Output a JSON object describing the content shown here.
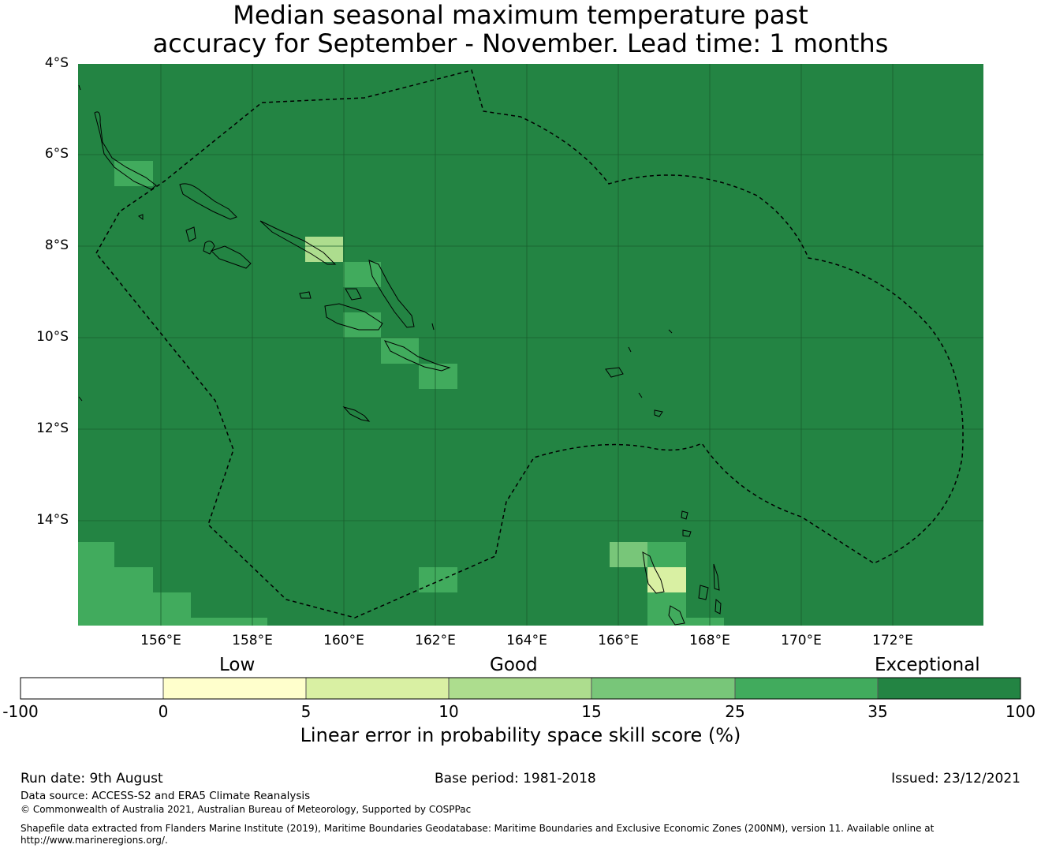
{
  "title": {
    "line1": "Median seasonal maximum temperature past",
    "line2": "accuracy for September - November. Lead time: 1 months"
  },
  "map": {
    "lat_labels": [
      "4°S",
      "6°S",
      "8°S",
      "10°S",
      "12°S",
      "14°S"
    ],
    "lon_labels": [
      "156°E",
      "158°E",
      "160°E",
      "162°E",
      "164°E",
      "166°E",
      "168°E",
      "170°E",
      "172°E"
    ],
    "background_color": "#238443"
  },
  "colorbar": {
    "headings": {
      "low": "Low",
      "good": "Good",
      "exceptional": "Exceptional"
    },
    "bins": [
      {
        "from": -100,
        "to": 0,
        "color": "#ffffff"
      },
      {
        "from": 0,
        "to": 5,
        "color": "#ffffcc"
      },
      {
        "from": 5,
        "to": 10,
        "color": "#d9f0a3"
      },
      {
        "from": 10,
        "to": 15,
        "color": "#addd8e"
      },
      {
        "from": 15,
        "to": 25,
        "color": "#78c679"
      },
      {
        "from": 25,
        "to": 35,
        "color": "#41ab5d"
      },
      {
        "from": 35,
        "to": 100,
        "color": "#238443"
      }
    ],
    "ticks": [
      "-100",
      "0",
      "5",
      "10",
      "15",
      "25",
      "35",
      "100"
    ],
    "label": "Linear error in probability space skill score (%)"
  },
  "footer": {
    "run_date": "Run date: 9th August",
    "base_period": "Base period: 1981-2018",
    "issued": "Issued: 23/12/2021",
    "data_source": "Data source: ACCESS-S2 and ERA5 Climate Reanalysis",
    "copyright": "© Commonwealth of Australia 2021, Australian Bureau of Meteorology, Supported by COSPPac",
    "shapefile_line1": "Shapefile data extracted from Flanders Marine Institute (2019), Maritime Boundaries Geodatabase: Maritime Boundaries and Exclusive Economic Zones (200NM), version 11. Available online at",
    "shapefile_line2": "http://www.marineregions.org/."
  }
}
